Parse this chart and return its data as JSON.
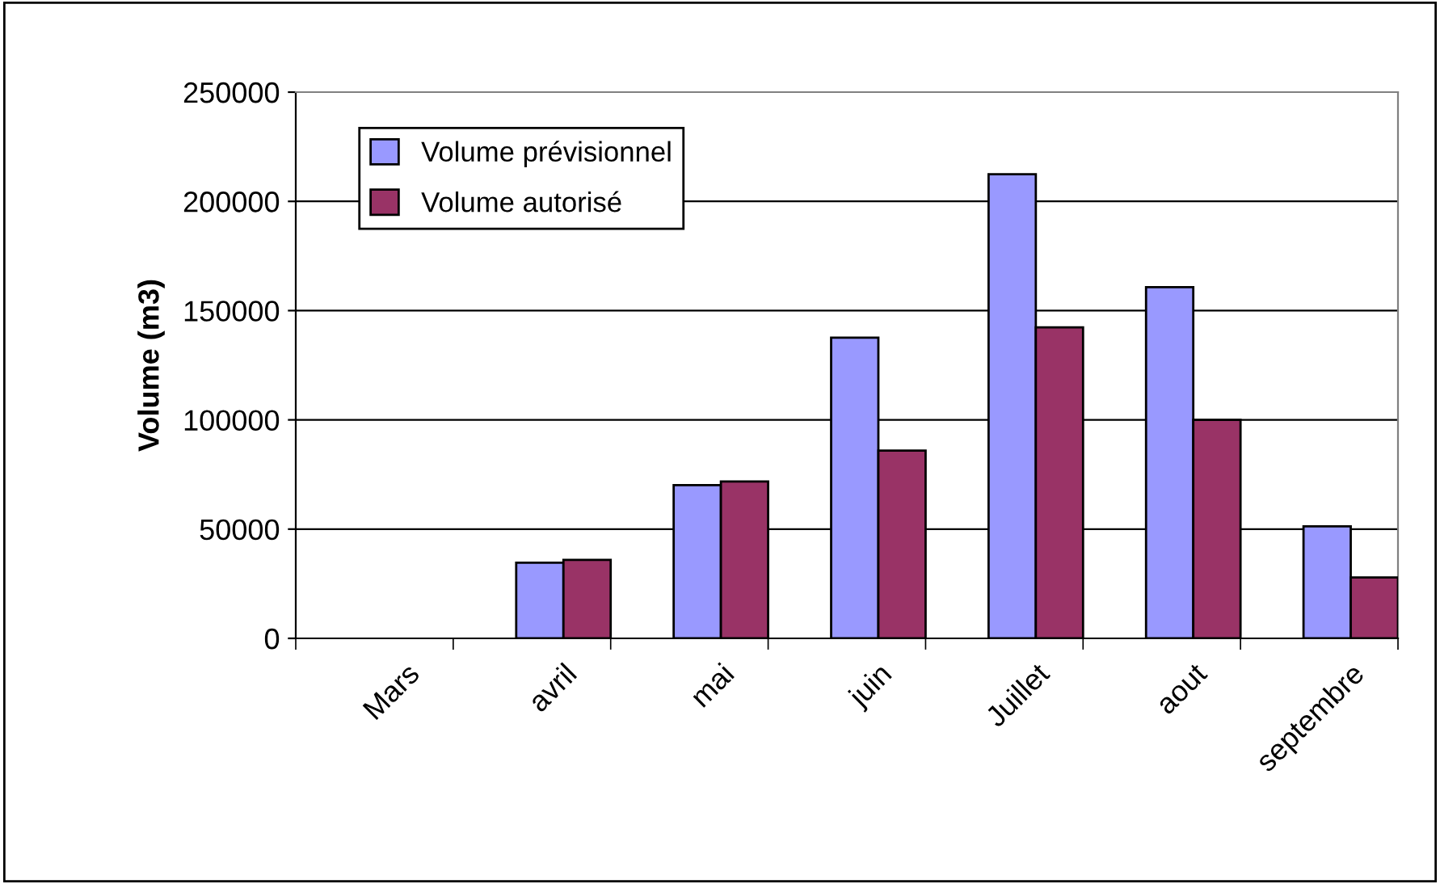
{
  "chart_data": {
    "type": "bar",
    "ylabel": "Volume (m3)",
    "categories": [
      "Mars",
      "avril",
      "mai",
      "juin",
      "Juillet",
      "aout",
      "septembre"
    ],
    "series": [
      {
        "name": "Volume prévisionnel",
        "color": "#9999ff",
        "values": [
          null,
          34600,
          70100,
          137600,
          212400,
          160700,
          51300
        ]
      },
      {
        "name": "Volume autorisé",
        "color": "#993366",
        "values": [
          null,
          35900,
          71800,
          85900,
          142300,
          100000,
          27900
        ]
      }
    ],
    "ylim": [
      0,
      250000
    ],
    "yticks": [
      0,
      50000,
      100000,
      150000,
      200000,
      250000
    ],
    "grid": "y",
    "legend": "top left"
  }
}
